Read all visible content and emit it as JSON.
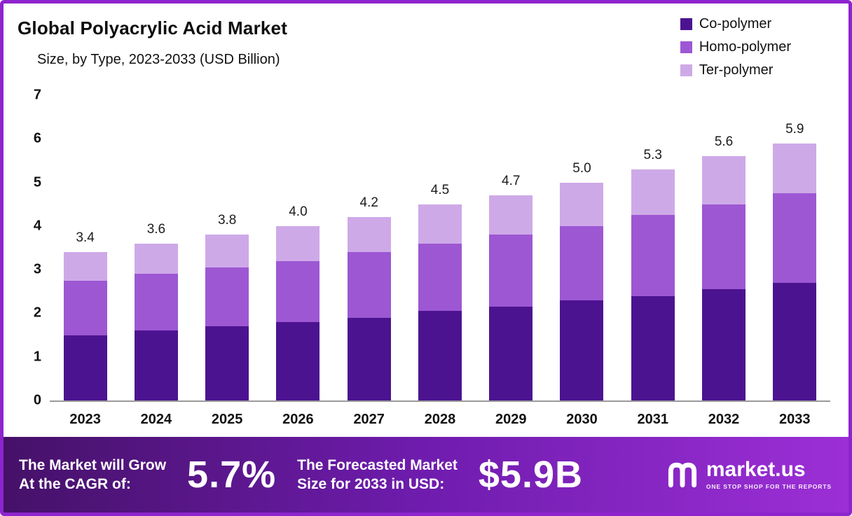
{
  "header": {
    "title": "Global Polyacrylic Acid Market",
    "subtitle": "Size, by Type, 2023-2033 (USD Billion)"
  },
  "chart_data": {
    "type": "bar",
    "stacked": true,
    "title": "Global Polyacrylic Acid Market Size, by Type, 2023-2033 (USD Billion)",
    "categories": [
      "2023",
      "2024",
      "2025",
      "2026",
      "2027",
      "2028",
      "2029",
      "2030",
      "2031",
      "2032",
      "2033"
    ],
    "series": [
      {
        "name": "Co-polymer",
        "color": "#4C1390",
        "values": [
          1.5,
          1.6,
          1.7,
          1.8,
          1.9,
          2.05,
          2.15,
          2.3,
          2.4,
          2.55,
          2.7
        ]
      },
      {
        "name": "Homo-polymer",
        "color": "#9D57D3",
        "values": [
          1.25,
          1.3,
          1.35,
          1.4,
          1.5,
          1.55,
          1.65,
          1.7,
          1.85,
          1.95,
          2.05
        ]
      },
      {
        "name": "Ter-polymer",
        "color": "#CEA9E8",
        "values": [
          0.65,
          0.7,
          0.75,
          0.8,
          0.8,
          0.9,
          0.9,
          1.0,
          1.05,
          1.1,
          1.15
        ]
      }
    ],
    "totals": [
      3.4,
      3.6,
      3.8,
      4.0,
      4.2,
      4.5,
      4.7,
      5.0,
      5.3,
      5.6,
      5.9
    ],
    "total_labels": [
      "3.4",
      "3.6",
      "3.8",
      "4.0",
      "4.2",
      "4.5",
      "4.7",
      "5.0",
      "5.3",
      "5.6",
      "5.9"
    ],
    "ylim": [
      0,
      7
    ],
    "yticks": [
      "7",
      "6",
      "5",
      "4",
      "3",
      "2",
      "1",
      "0"
    ],
    "grid": false,
    "legend_position": "top-right"
  },
  "footer": {
    "cagr_label_line1": "The Market will Grow",
    "cagr_label_line2": "At the CAGR of:",
    "cagr_value": "5.7%",
    "forecast_label_line1": "The Forecasted Market",
    "forecast_label_line2": "Size for 2033 in USD:",
    "forecast_value": "$5.9B",
    "brand_name": "market.us",
    "brand_tagline": "ONE STOP SHOP FOR THE REPORTS"
  },
  "colors": {
    "frame_border": "#8E24CE",
    "footer_gradient_start": "#451168",
    "footer_gradient_end": "#9C2FD6",
    "co_polymer": "#4C1390",
    "homo_polymer": "#9D57D3",
    "ter_polymer": "#CEA9E8"
  }
}
